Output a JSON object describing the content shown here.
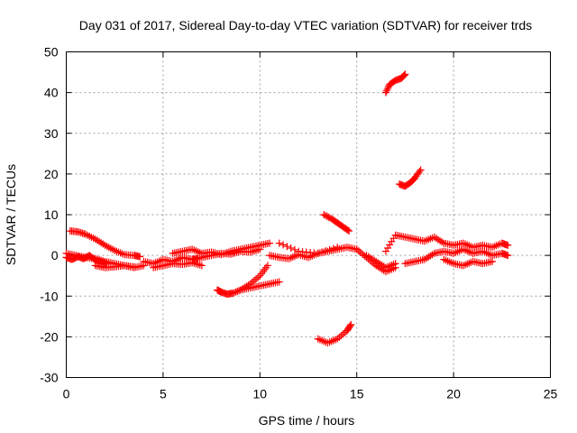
{
  "chart_data": {
    "type": "scatter",
    "title": "Day 031 of 2017, Sidereal Day-to-day VTEC variation (SDTVAR) for receiver trds",
    "xlabel": "GPS time / hours",
    "ylabel": "SDTVAR / TECUs",
    "xlim": [
      0,
      25
    ],
    "ylim": [
      -30,
      50
    ],
    "xticks": [
      0,
      5,
      10,
      15,
      20,
      25
    ],
    "yticks": [
      -30,
      -20,
      -10,
      0,
      10,
      20,
      30,
      40,
      50
    ],
    "grid": true,
    "legend": "none",
    "marker": "+",
    "series_color": "#ff0000",
    "series": [
      {
        "name": "seg1",
        "x": [
          0.0,
          0.3,
          0.6,
          0.9,
          1.2,
          1.5,
          1.8,
          2.1
        ],
        "y": [
          -0.5,
          -1.0,
          -0.3,
          -0.8,
          0.0,
          -1.2,
          -1.5,
          -2.0
        ]
      },
      {
        "name": "seg2",
        "x": [
          0.2,
          0.6,
          1.0,
          1.5,
          2.0,
          2.5,
          3.0,
          3.5,
          3.8
        ],
        "y": [
          6.0,
          5.8,
          5.2,
          4.0,
          2.5,
          1.2,
          0.2,
          0.0,
          -0.3
        ]
      },
      {
        "name": "seg3",
        "x": [
          0.0,
          0.5,
          1.0,
          1.5,
          2.0,
          2.5,
          3.0,
          3.5
        ],
        "y": [
          0.5,
          0.0,
          -0.5,
          -0.8,
          -1.5,
          -2.0,
          -2.5,
          -2.8
        ]
      },
      {
        "name": "seg4",
        "x": [
          1.5,
          2.0,
          2.5,
          3.0,
          3.5,
          4.0
        ],
        "y": [
          -2.5,
          -3.0,
          -2.8,
          -2.5,
          -3.0,
          -2.5
        ]
      },
      {
        "name": "seg5",
        "x": [
          4.0,
          4.5,
          5.0,
          5.5,
          6.0,
          6.5,
          6.8
        ],
        "y": [
          -1.5,
          -2.0,
          -1.0,
          -1.5,
          -0.5,
          -1.0,
          -0.8
        ]
      },
      {
        "name": "seg6",
        "x": [
          4.5,
          5.0,
          5.5,
          6.0,
          6.5,
          7.0
        ],
        "y": [
          -3.0,
          -2.5,
          -2.0,
          -2.2,
          -1.8,
          -2.5
        ]
      },
      {
        "name": "seg7",
        "x": [
          5.5,
          6.0,
          6.5,
          7.0,
          7.5,
          8.0,
          8.5,
          9.0,
          9.5,
          10.0,
          10.5
        ],
        "y": [
          0.5,
          1.0,
          1.5,
          0.5,
          0.8,
          0.2,
          1.0,
          1.5,
          2.0,
          2.5,
          3.0
        ]
      },
      {
        "name": "seg8",
        "x": [
          6.5,
          7.0,
          7.5,
          8.0,
          8.5,
          9.0,
          9.5,
          10.0
        ],
        "y": [
          -1.0,
          -0.5,
          0.0,
          0.5,
          0.3,
          1.0,
          0.8,
          1.5
        ]
      },
      {
        "name": "seg9",
        "x": [
          7.8,
          8.0,
          8.3,
          8.6,
          9.0,
          9.5,
          10.0,
          10.4
        ],
        "y": [
          -8.5,
          -9.0,
          -9.5,
          -9.3,
          -8.5,
          -7.0,
          -5.0,
          -2.5
        ]
      },
      {
        "name": "seg10",
        "x": [
          9.0,
          9.5,
          10.0,
          10.5,
          11.0
        ],
        "y": [
          -8.5,
          -8.0,
          -7.5,
          -7.0,
          -6.5
        ]
      },
      {
        "name": "seg11",
        "x": [
          10.5,
          11.0,
          11.5,
          12.0,
          12.5,
          13.0,
          13.5,
          14.0,
          14.5,
          15.0
        ],
        "y": [
          0.0,
          -0.5,
          -0.8,
          0.2,
          -0.5,
          0.5,
          1.0,
          1.5,
          2.0,
          1.5
        ]
      },
      {
        "name": "seg12",
        "x": [
          11.0,
          12.0,
          13.0,
          14.0
        ],
        "y": [
          3.0,
          1.0,
          0.5,
          2.0
        ]
      },
      {
        "name": "seg13",
        "x": [
          13.0,
          13.5,
          14.0,
          14.5,
          14.7
        ],
        "y": [
          -20.5,
          -21.5,
          -20.5,
          -18.5,
          -17.0
        ]
      },
      {
        "name": "seg14",
        "x": [
          13.3,
          13.7,
          14.0,
          14.3,
          14.6
        ],
        "y": [
          10.0,
          9.0,
          8.0,
          7.0,
          6.0
        ]
      },
      {
        "name": "seg15",
        "x": [
          15.0,
          15.5,
          16.0,
          16.5,
          17.0
        ],
        "y": [
          1.5,
          -0.5,
          -2.5,
          -4.0,
          -3.0
        ]
      },
      {
        "name": "seg16",
        "x": [
          15.5,
          16.0,
          16.5,
          17.0
        ],
        "y": [
          0.0,
          -1.5,
          -3.0,
          -2.0
        ]
      },
      {
        "name": "seg17",
        "x": [
          16.5,
          16.7,
          17.0,
          17.3,
          17.5
        ],
        "y": [
          40.0,
          42.0,
          43.0,
          43.5,
          44.5
        ]
      },
      {
        "name": "seg18",
        "x": [
          17.2,
          17.5,
          17.8,
          18.0,
          18.3
        ],
        "y": [
          17.5,
          17.0,
          18.0,
          19.0,
          21.0
        ]
      },
      {
        "name": "seg19",
        "x": [
          16.5,
          17.0,
          17.5,
          18.0,
          18.5,
          19.0,
          19.5,
          20.0,
          20.5,
          21.0,
          21.5,
          22.0,
          22.5,
          22.8
        ],
        "y": [
          1.0,
          5.0,
          4.5,
          4.0,
          3.5,
          4.5,
          3.0,
          2.5,
          3.0,
          2.0,
          2.5,
          2.0,
          3.0,
          2.5
        ]
      },
      {
        "name": "seg20",
        "x": [
          17.5,
          18.0,
          18.5,
          19.0,
          19.5,
          20.0,
          20.5,
          21.0,
          21.5,
          22.0,
          22.5,
          22.8
        ],
        "y": [
          -2.0,
          -1.5,
          -1.0,
          0.5,
          1.0,
          0.5,
          1.5,
          0.5,
          1.0,
          0.0,
          0.5,
          0.0
        ]
      },
      {
        "name": "seg21",
        "x": [
          19.5,
          20.0,
          20.5,
          21.0,
          21.5,
          22.0
        ],
        "y": [
          -1.0,
          -2.0,
          -2.5,
          -1.5,
          -2.0,
          -1.5
        ]
      }
    ]
  }
}
